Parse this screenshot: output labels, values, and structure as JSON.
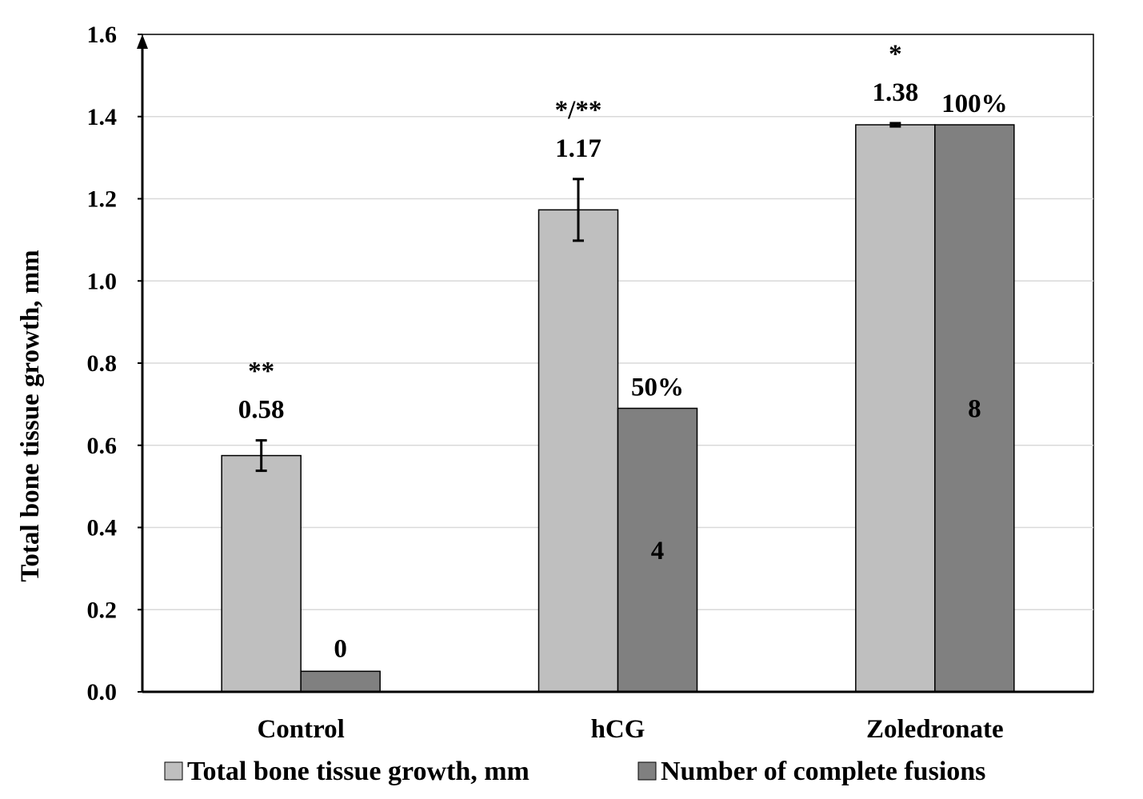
{
  "chart_data": {
    "type": "bar",
    "ylabel": "Total bone tissue growth, mm",
    "ylim": [
      0,
      1.6
    ],
    "yticks": [
      "0.0",
      "0.2",
      "0.4",
      "0.6",
      "0.8",
      "1.0",
      "1.2",
      "1.4",
      "1.6"
    ],
    "grid": true,
    "legend_position": "bottom",
    "categories": [
      "Control",
      "hCG",
      "Zoledronate"
    ],
    "colors": {
      "growth": "#bfbfbf",
      "fusions": "#808080",
      "grid": "#d9d9d9",
      "axis": "#000000"
    },
    "series": [
      {
        "name": "Total bone tissue growth, mm",
        "values": [
          0.575,
          1.173,
          1.38
        ],
        "error": [
          0.037,
          0.075,
          0.004
        ],
        "value_labels": [
          "0.58",
          "1.17",
          "1.38"
        ],
        "significance": [
          "**",
          "*/**",
          "*"
        ]
      },
      {
        "name": "Number of complete fusions",
        "values": [
          0.05,
          0.69,
          1.38
        ],
        "count_labels": [
          "0",
          "4",
          "8"
        ],
        "percent_labels": [
          "",
          "50%",
          "100%"
        ]
      }
    ]
  }
}
